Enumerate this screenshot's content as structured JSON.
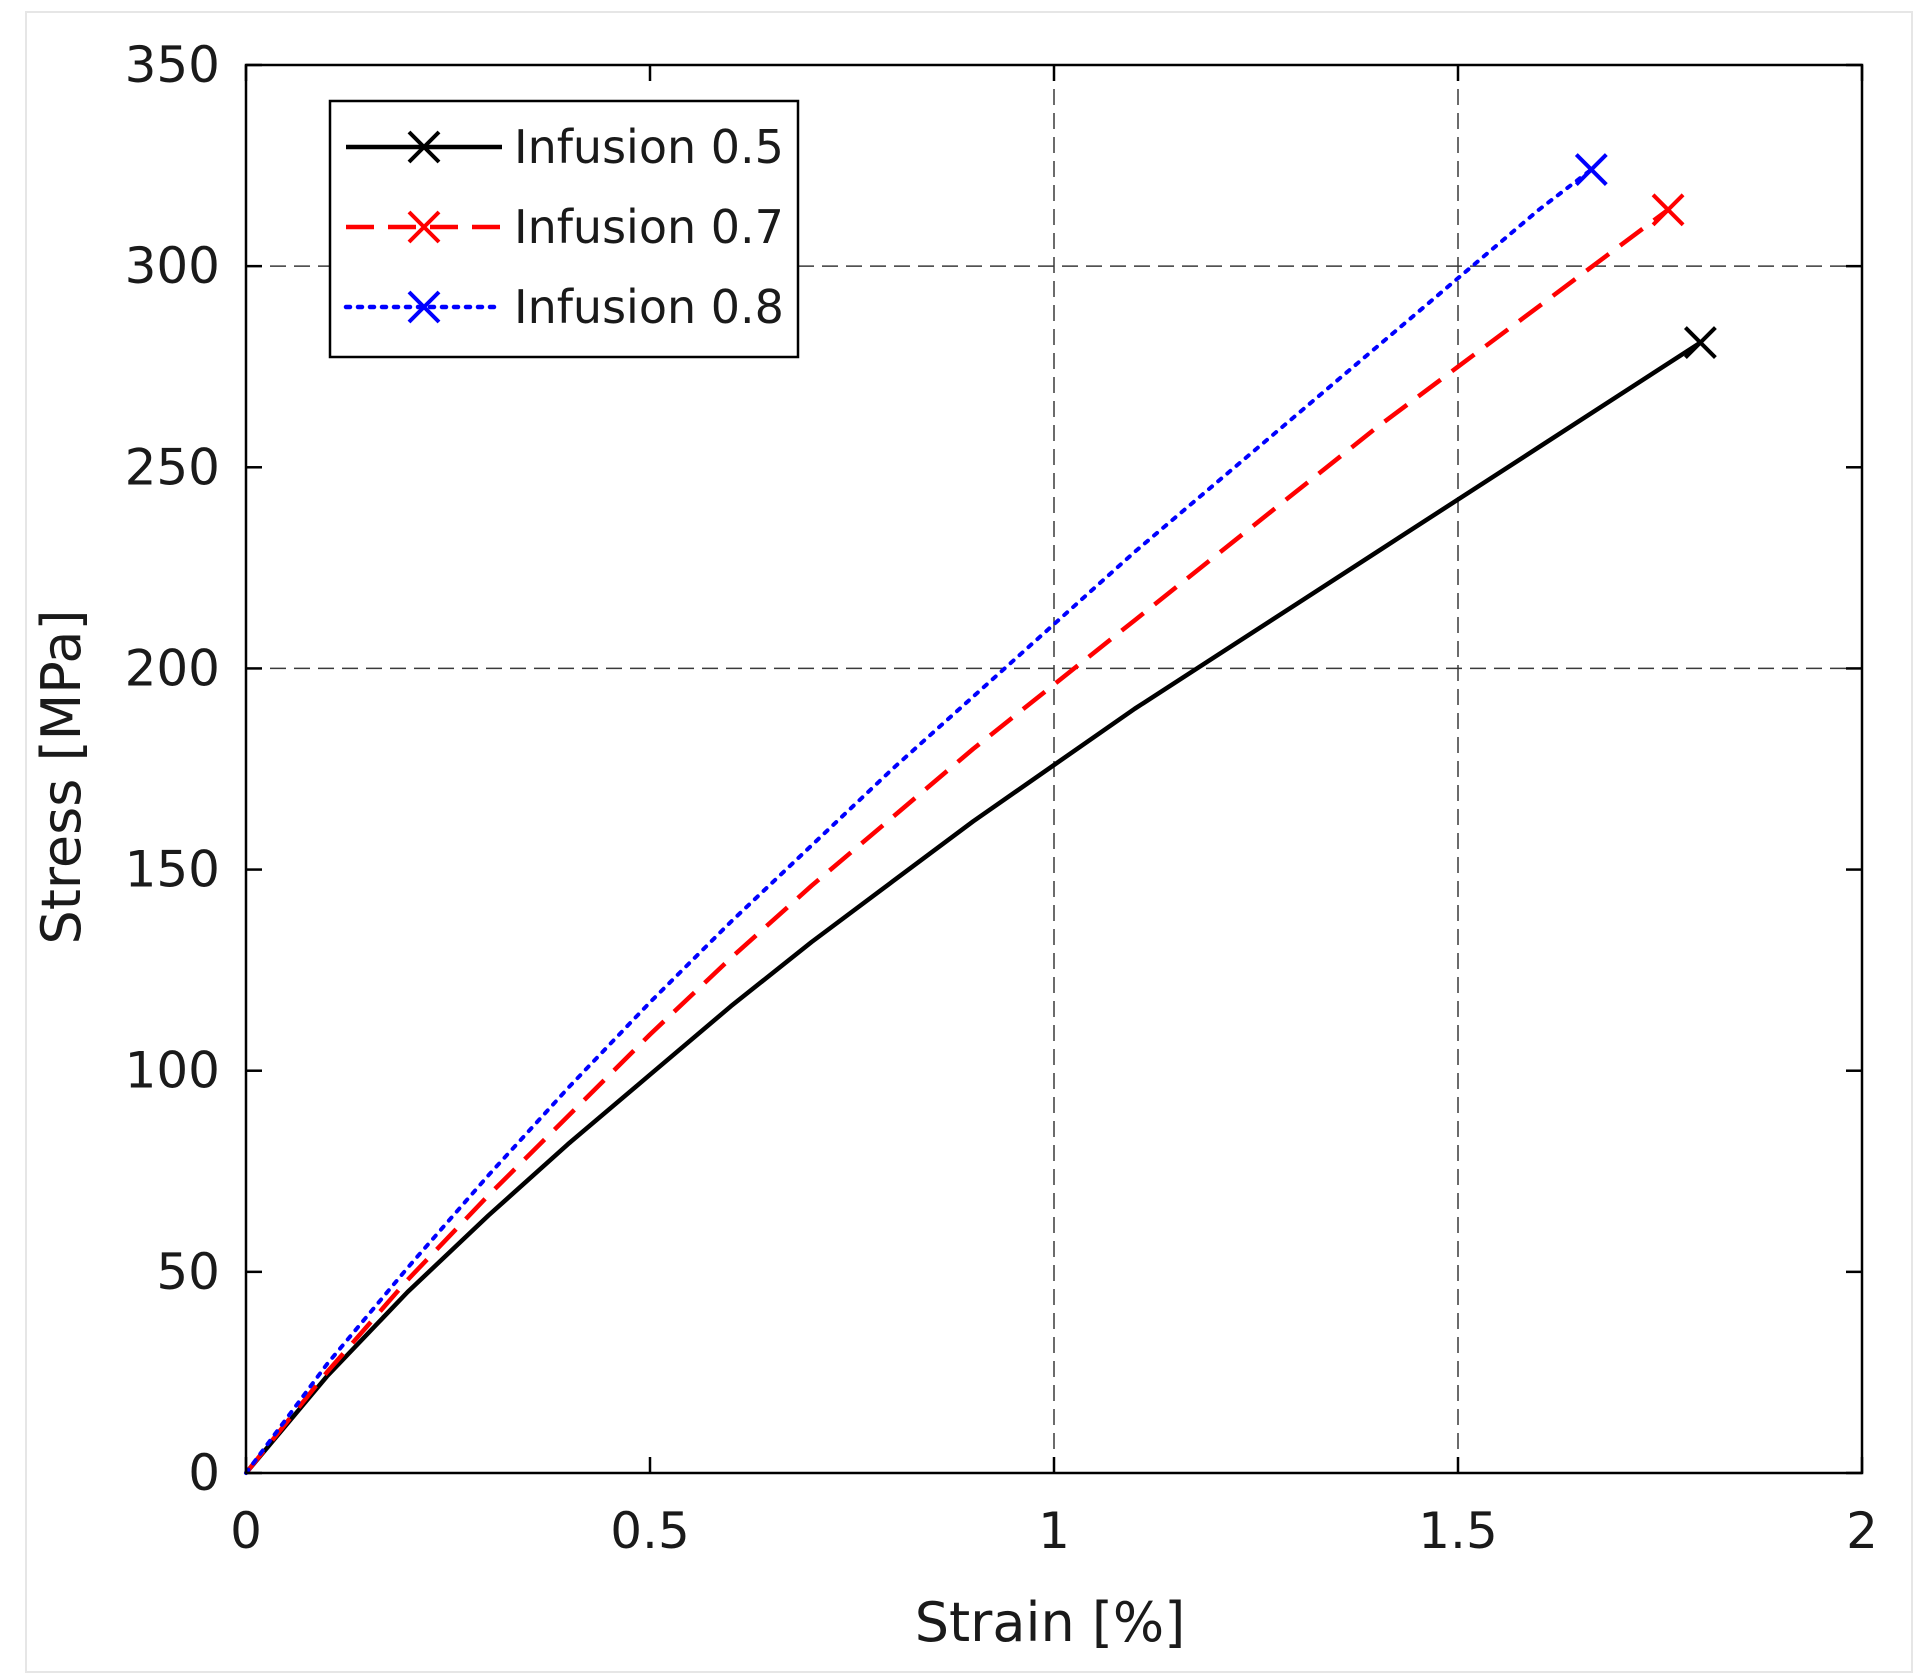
{
  "chart_data": {
    "type": "line",
    "xlabel": "Strain [%]",
    "ylabel": "Stress [MPa]",
    "xlim": [
      0,
      2
    ],
    "ylim": [
      0,
      350
    ],
    "xticks": [
      0,
      0.5,
      1,
      1.5,
      2
    ],
    "xtick_labels": [
      "0",
      "0.5",
      "1",
      "1.5",
      "2"
    ],
    "yticks": [
      0,
      50,
      100,
      150,
      200,
      250,
      300,
      350
    ],
    "ytick_labels": [
      "0",
      "50",
      "100",
      "150",
      "200",
      "250",
      "300",
      "350"
    ],
    "grid": {
      "x": [
        1,
        1.5
      ],
      "y": [
        200,
        300
      ],
      "style": "dashed"
    },
    "legend_position": "top-left",
    "series": [
      {
        "name": "Infusion 0.5",
        "color": "#000000",
        "dash": "solid",
        "x": [
          0,
          0.1,
          0.2,
          0.3,
          0.4,
          0.5,
          0.6,
          0.7,
          0.8,
          0.9,
          1.0,
          1.1,
          1.2,
          1.3,
          1.4,
          1.5,
          1.6,
          1.7,
          1.8
        ],
        "y": [
          0,
          24,
          45,
          64,
          82,
          99,
          116,
          132,
          147,
          162,
          176,
          190,
          203,
          216,
          229,
          242,
          255,
          268,
          281
        ],
        "marker": {
          "x": 1.8,
          "y": 281
        }
      },
      {
        "name": "Infusion 0.7",
        "color": "#ff0000",
        "dash": "dashed",
        "x": [
          0,
          0.1,
          0.2,
          0.3,
          0.4,
          0.5,
          0.6,
          0.7,
          0.8,
          0.9,
          1.0,
          1.1,
          1.2,
          1.3,
          1.4,
          1.5,
          1.6,
          1.7,
          1.76
        ],
        "y": [
          0,
          25,
          48,
          69,
          89,
          109,
          128,
          146,
          163,
          180,
          196,
          212,
          228,
          244,
          260,
          275,
          290,
          305,
          314
        ],
        "marker": {
          "x": 1.76,
          "y": 314
        }
      },
      {
        "name": "Infusion 0.8",
        "color": "#0000ff",
        "dash": "dotted",
        "x": [
          0,
          0.1,
          0.2,
          0.3,
          0.4,
          0.5,
          0.6,
          0.7,
          0.8,
          0.9,
          1.0,
          1.1,
          1.2,
          1.3,
          1.4,
          1.5,
          1.6,
          1.665
        ],
        "y": [
          0,
          27,
          51,
          74,
          96,
          117,
          137,
          156,
          175,
          193,
          211,
          229,
          246,
          263,
          280,
          297,
          314,
          324
        ],
        "marker": {
          "x": 1.665,
          "y": 324
        }
      }
    ]
  }
}
